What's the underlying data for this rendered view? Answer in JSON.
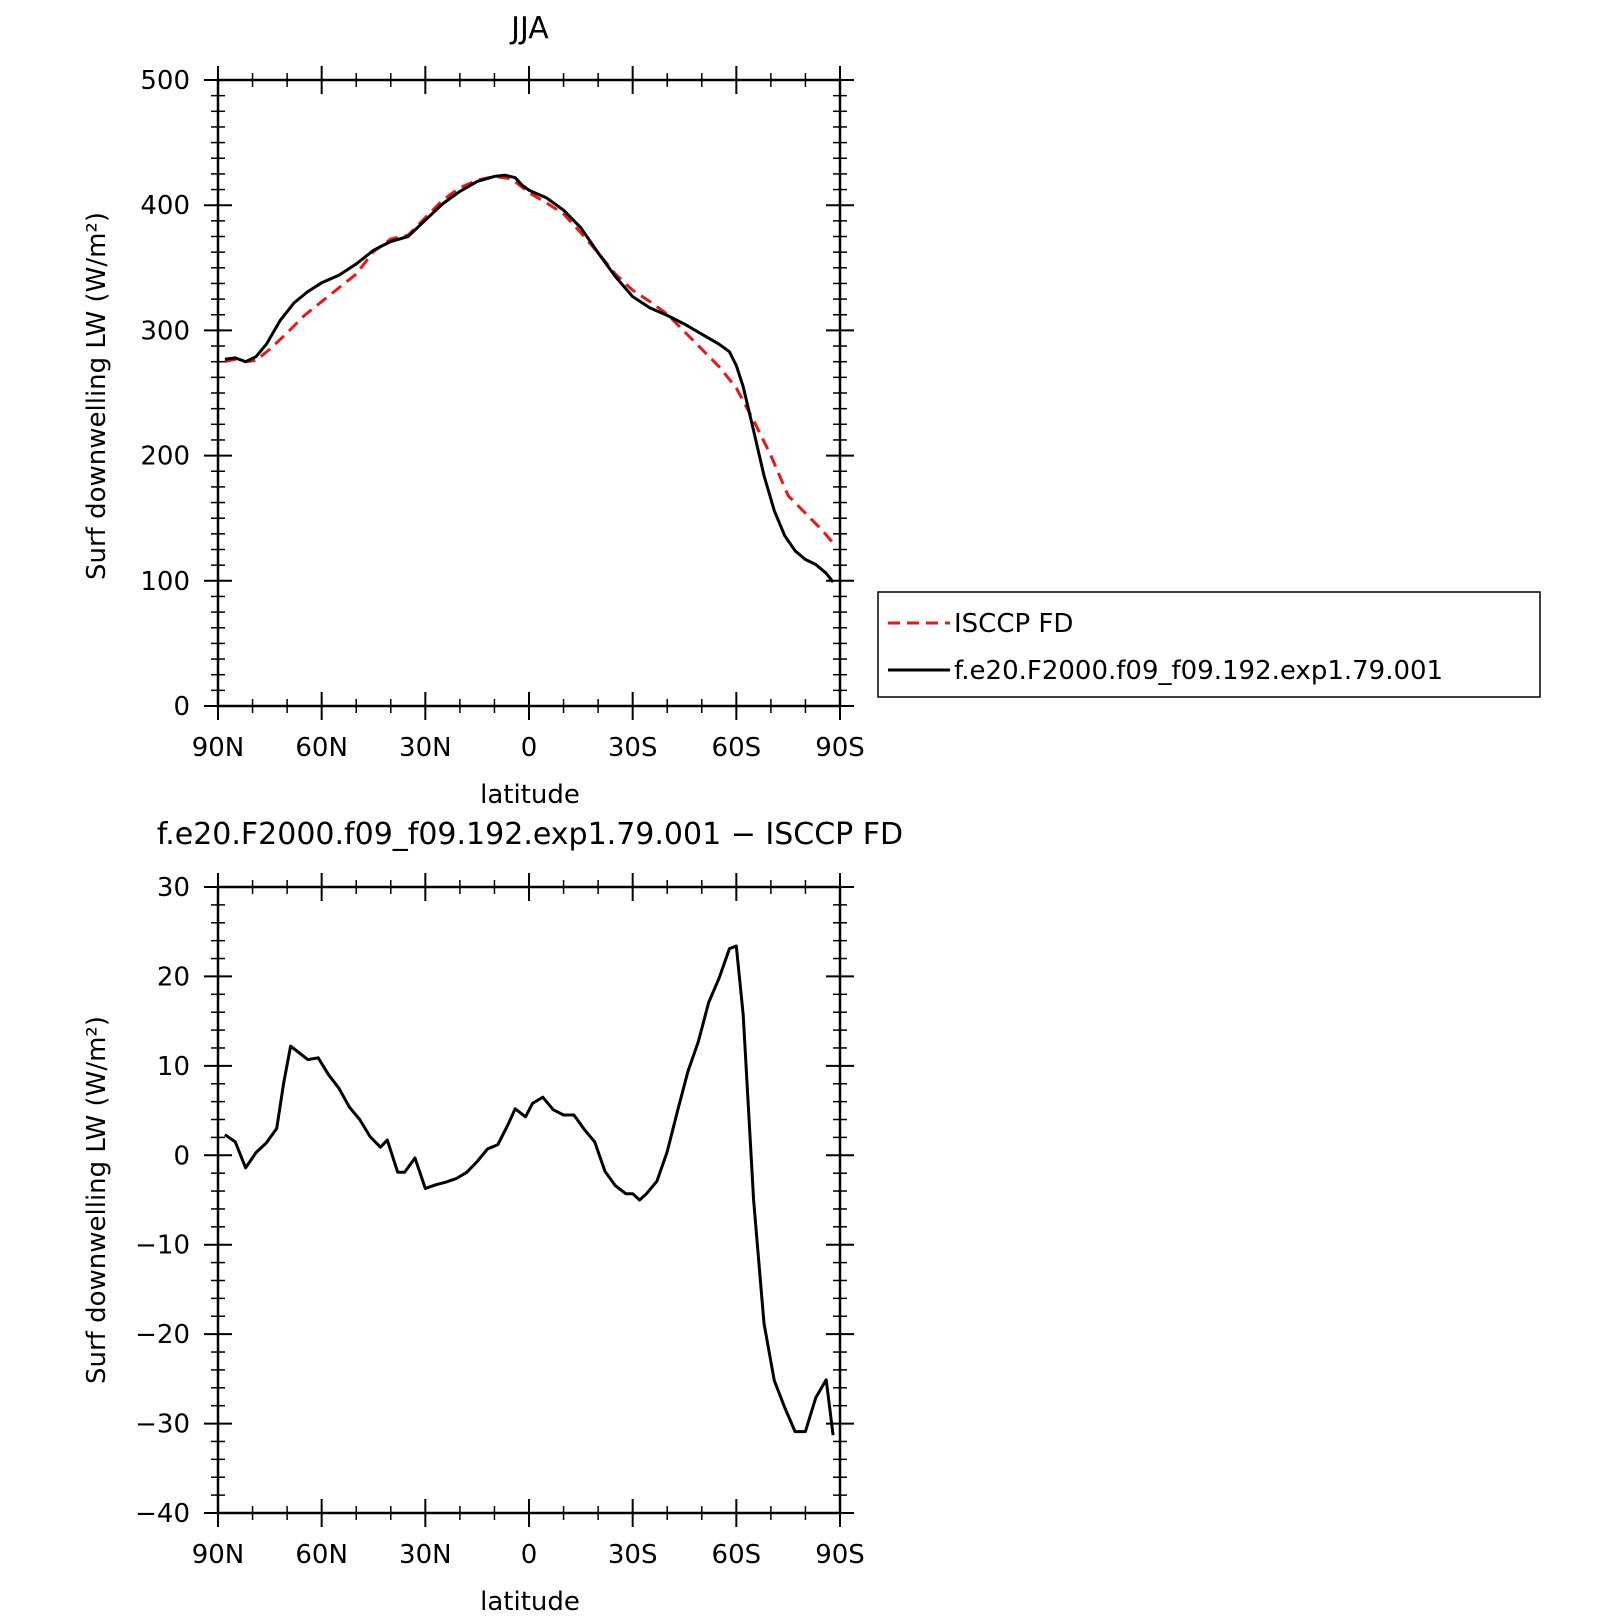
{
  "chart_data": [
    {
      "type": "line",
      "title": "JJA",
      "xlabel": "latitude",
      "ylabel": "Surf downwelling LW (W/m²)",
      "xlim": [
        -90,
        90
      ],
      "ylim": [
        0,
        500
      ],
      "x_ticks": [
        -90,
        -60,
        -30,
        0,
        30,
        60,
        90
      ],
      "x_tick_labels": [
        "90N",
        "60N",
        "30N",
        "0",
        "30S",
        "60S",
        "90S"
      ],
      "y_ticks": [
        0,
        100,
        200,
        300,
        400,
        500
      ],
      "y_tick_labels": [
        "0",
        "100",
        "200",
        "300",
        "400",
        "500"
      ],
      "legend_position": "right",
      "series": [
        {
          "name": "ISCCP FD",
          "color": "#e41a1c",
          "dash": "dashed",
          "x": [
            -88,
            -85,
            -82,
            -79,
            -75,
            -70,
            -65,
            -60,
            -55,
            -50,
            -45,
            -40,
            -35,
            -30,
            -25,
            -20,
            -15,
            -10,
            -5,
            0,
            5,
            10,
            15,
            20,
            25,
            30,
            35,
            40,
            45,
            50,
            55,
            60,
            65,
            70,
            75,
            80,
            85,
            88
          ],
          "y": [
            275,
            277,
            275,
            276,
            285,
            298,
            312,
            323,
            334,
            345,
            363,
            373,
            376,
            390,
            404,
            414,
            420,
            423,
            421,
            410,
            402,
            393,
            378,
            362,
            345,
            332,
            323,
            313,
            299,
            285,
            271,
            254,
            228,
            200,
            168,
            154,
            140,
            130
          ]
        },
        {
          "name": "f.e20.F2000.f09_f09.192.exp1.79.001",
          "color": "#000000",
          "dash": "solid",
          "x": [
            -88,
            -85,
            -82,
            -79,
            -76,
            -72,
            -68,
            -64,
            -60,
            -55,
            -50,
            -45,
            -40,
            -35,
            -30,
            -25,
            -20,
            -15,
            -10,
            -7,
            -4,
            -2,
            0,
            5,
            10,
            15,
            20,
            25,
            30,
            35,
            40,
            45,
            50,
            55,
            58,
            60,
            62,
            65,
            68,
            71,
            74,
            77,
            80,
            83,
            86,
            88
          ],
          "y": [
            277,
            278,
            275,
            279,
            289,
            308,
            322,
            331,
            338,
            344,
            353,
            364,
            371,
            375,
            388,
            401,
            411,
            419,
            423,
            424,
            422,
            416,
            412,
            406,
            396,
            382,
            362,
            343,
            327,
            318,
            312,
            305,
            297,
            289,
            283,
            272,
            255,
            220,
            184,
            156,
            136,
            124,
            117,
            113,
            106,
            99
          ]
        }
      ]
    },
    {
      "type": "line",
      "title": "f.e20.F2000.f09_f09.192.exp1.79.001 − ISCCP FD",
      "xlabel": "latitude",
      "ylabel": "Surf downwelling LW (W/m²)",
      "xlim": [
        -90,
        90
      ],
      "ylim": [
        -40,
        30
      ],
      "x_ticks": [
        -90,
        -60,
        -30,
        0,
        30,
        60,
        90
      ],
      "x_tick_labels": [
        "90N",
        "60N",
        "30N",
        "0",
        "30S",
        "60S",
        "90S"
      ],
      "y_ticks": [
        -40,
        -30,
        -20,
        -10,
        0,
        10,
        20,
        30
      ],
      "y_tick_labels": [
        "−40",
        "−30",
        "−20",
        "−10",
        "0",
        "10",
        "20",
        "30"
      ],
      "series": [
        {
          "color": "#000000",
          "dash": "solid",
          "x": [
            -88,
            -85,
            -82,
            -79,
            -76,
            -73,
            -71,
            -69,
            -67,
            -64,
            -61,
            -58,
            -55,
            -52,
            -49,
            -46,
            -43,
            -41,
            -38,
            -36,
            -33,
            -30,
            -27,
            -24,
            -21,
            -18,
            -15,
            -12,
            -9,
            -6,
            -4,
            -1,
            1,
            4,
            7,
            10,
            13,
            16,
            19,
            22,
            25,
            28,
            30,
            32,
            34,
            37,
            40,
            43,
            46,
            49,
            52,
            55,
            58,
            60,
            62,
            65,
            68,
            71,
            74,
            77,
            80,
            83,
            86,
            88
          ],
          "y": [
            2.3,
            1.5,
            -1.4,
            0.3,
            1.4,
            3.0,
            8.1,
            12.2,
            11.6,
            10.7,
            10.9,
            9.0,
            7.5,
            5.4,
            4.0,
            2.1,
            0.9,
            1.7,
            -1.9,
            -1.9,
            -0.3,
            -3.7,
            -3.3,
            -3.0,
            -2.6,
            -1.9,
            -0.7,
            0.7,
            1.2,
            3.5,
            5.2,
            4.3,
            5.8,
            6.5,
            5.1,
            4.5,
            4.5,
            2.9,
            1.5,
            -1.8,
            -3.4,
            -4.3,
            -4.3,
            -5.0,
            -4.3,
            -2.9,
            0.4,
            5.0,
            9.4,
            12.7,
            17.1,
            19.8,
            23.1,
            23.4,
            15.7,
            -5.0,
            -18.8,
            -25.2,
            -28.2,
            -30.9,
            -30.9,
            -27.1,
            -25.1,
            -31.3
          ]
        }
      ]
    }
  ]
}
